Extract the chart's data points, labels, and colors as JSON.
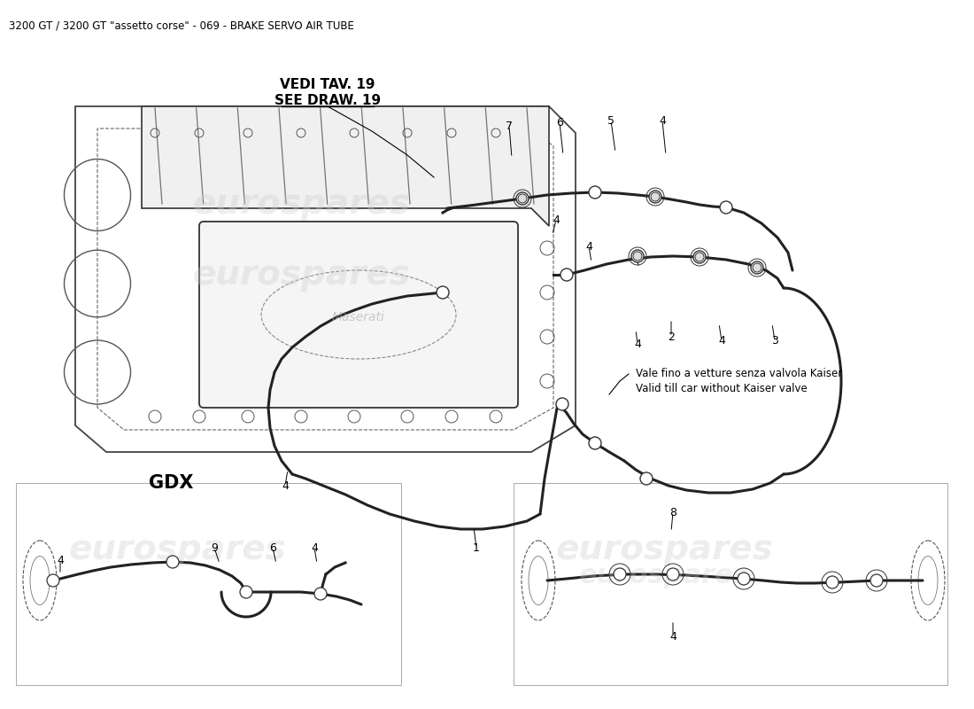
{
  "title": "3200 GT / 3200 GT \"assetto corse\" - 069 - BRAKE SERVO AIR TUBE",
  "background_color": "#ffffff",
  "vedi_line1": "VEDI TAV. 19",
  "vedi_line2": "SEE DRAW. 19",
  "gdx_text": "GDX",
  "note_line1": "Vale fino a vetture senza valvola Kaiser",
  "note_line2": "Valid till car without Kaiser valve",
  "watermark": "eurospares",
  "title_fontsize": 9,
  "label_fontsize": 9
}
